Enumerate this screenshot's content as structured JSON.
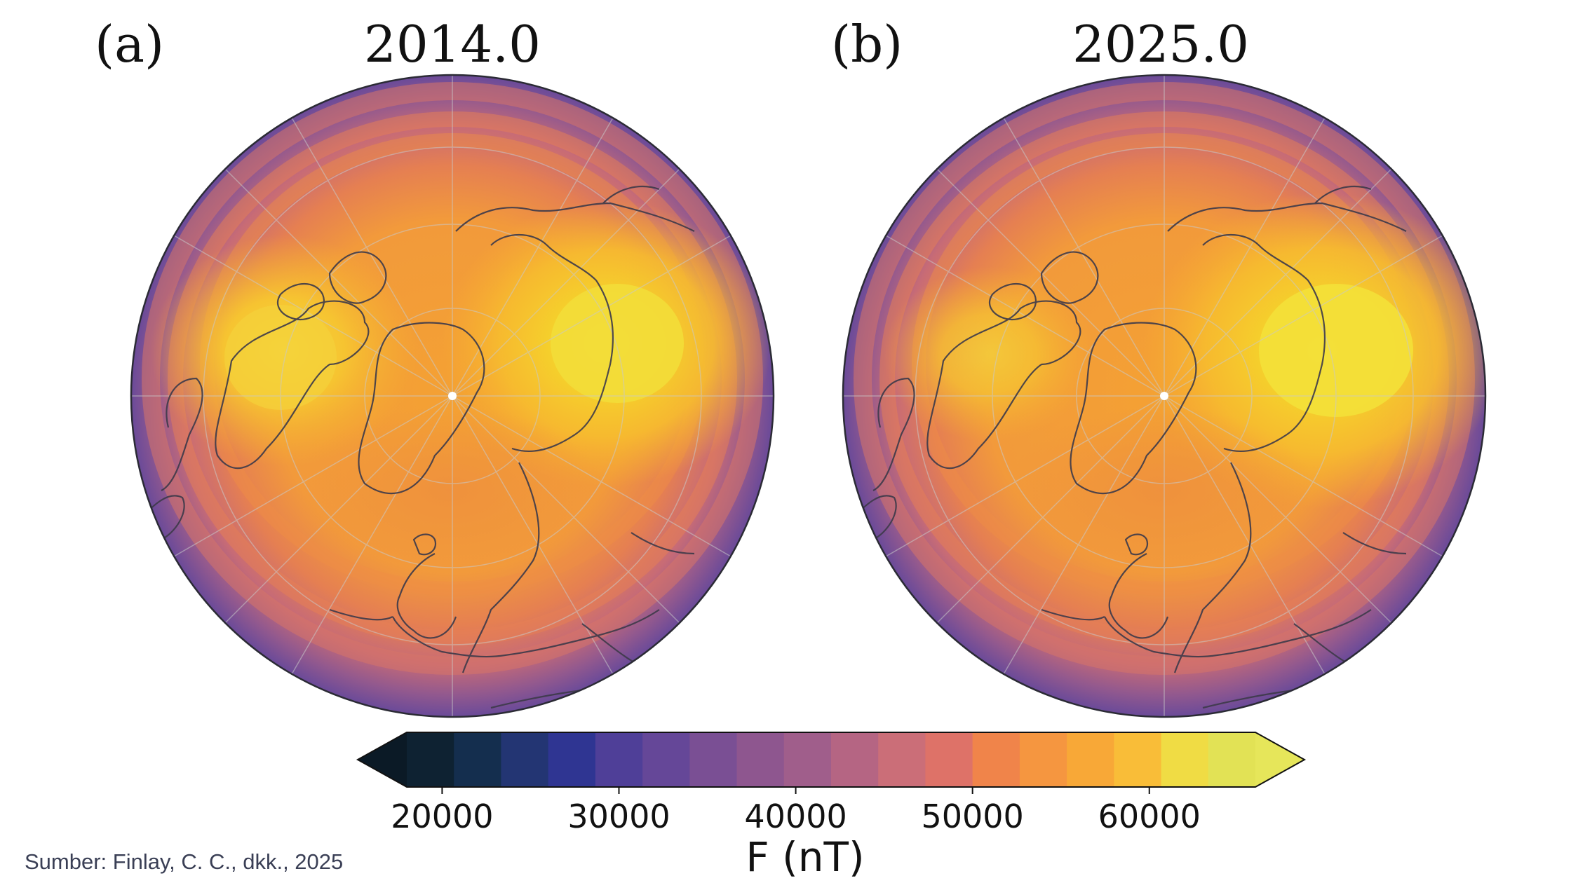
{
  "chart_data": [
    {
      "type": "map",
      "panel_label": "(a)",
      "title": "2014.0",
      "projection": "north-polar orthographic",
      "variable": "F (nT)",
      "features": [
        "intensity maximum over Canada",
        "intensity maximum over Siberia",
        "geographic north pole marker"
      ],
      "siberian_max_nT_approx": 62000,
      "canadian_max_nT_approx": 60000,
      "equatorward_min_nT_approx": 33000
    },
    {
      "type": "map",
      "panel_label": "(b)",
      "title": "2025.0",
      "projection": "north-polar orthographic",
      "variable": "F (nT)",
      "features": [
        "intensity maximum over Canada",
        "intensity maximum over Siberia",
        "geographic north pole marker"
      ],
      "siberian_max_nT_approx": 63000,
      "canadian_max_nT_approx": 58000,
      "equatorward_min_nT_approx": 33000
    }
  ],
  "colorbar": {
    "label": "F (nT)",
    "min": 18000,
    "max": 66000,
    "ticks": [
      20000,
      30000,
      40000,
      50000,
      60000
    ],
    "tick_labels": [
      "20000",
      "30000",
      "40000",
      "50000",
      "60000"
    ],
    "extend": "both",
    "colors": [
      "#0e2232",
      "#142e4e",
      "#233573",
      "#2f3592",
      "#4f3f98",
      "#654798",
      "#7a4f94",
      "#8e568f",
      "#a05e8b",
      "#b56583",
      "#cb6e78",
      "#de7268",
      "#f0844a",
      "#f59640",
      "#f8a837",
      "#f9bd38",
      "#f0dc44",
      "#e2e255"
    ],
    "under_color": "#0b1a26",
    "over_color": "#e6e65a"
  },
  "source": "Sumber: Finlay, C. C., dkk., 2025"
}
